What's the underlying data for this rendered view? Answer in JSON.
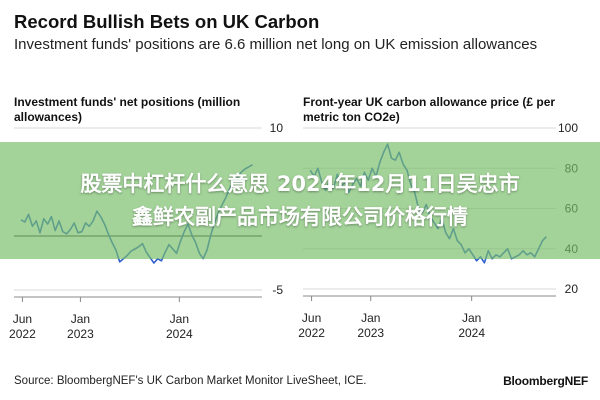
{
  "header": {
    "title": "Record Bullish Bets on UK Carbon",
    "subtitle": "Investment funds' positions are 6.6 million net long on UK emission allowances"
  },
  "banner": {
    "line1": "股票中杠杆什么意思 2024年12月11日吴忠市",
    "line2": "鑫鲜农副产品市场有限公司价格行情"
  },
  "footer": {
    "source": "Source: BloombergNEF's UK Carbon Market Monitor LiveSheet, ICE.",
    "brand": "BloombergNEF"
  },
  "colors": {
    "line": "#2f5fd0",
    "zero_line": "#555555",
    "grid": "#d9d9d9",
    "banner": "#78be69"
  },
  "chart_data": [
    {
      "type": "line",
      "title": "Investment funds' net positions (million allowances)",
      "xlabel": "",
      "ylabel": "",
      "ylim": [
        -5,
        10
      ],
      "y_ticks": [
        10,
        -5
      ],
      "x_ticks": [
        {
          "date": "2022-06-01",
          "line1": "Jun",
          "line2": "2022"
        },
        {
          "date": "2023-01-01",
          "line1": "Jan",
          "line2": "2023"
        },
        {
          "date": "2024-01-01",
          "line1": "Jan",
          "line2": "2024"
        }
      ],
      "zero_line": true,
      "grid": true,
      "series": [
        {
          "x": [
            "2022-05-27",
            "2022-06-10",
            "2022-06-24",
            "2022-07-08",
            "2022-07-22",
            "2022-08-05",
            "2022-08-19",
            "2022-09-02",
            "2022-09-16",
            "2022-09-30",
            "2022-10-14",
            "2022-10-28",
            "2022-11-11",
            "2022-11-25",
            "2022-12-09",
            "2022-12-23",
            "2023-01-06",
            "2023-01-20",
            "2023-02-03",
            "2023-02-17",
            "2023-03-03",
            "2023-03-17",
            "2023-03-31",
            "2023-04-14",
            "2023-04-28",
            "2023-05-12",
            "2023-05-26",
            "2023-06-09",
            "2023-06-23",
            "2023-07-07",
            "2023-07-21",
            "2023-08-04",
            "2023-08-18",
            "2023-09-01",
            "2023-09-15",
            "2023-09-29",
            "2023-10-13",
            "2023-10-27",
            "2023-11-10",
            "2023-11-24",
            "2023-12-08",
            "2023-12-22",
            "2024-01-05",
            "2024-01-19",
            "2024-02-02",
            "2024-02-16",
            "2024-03-01",
            "2024-03-15",
            "2024-03-29",
            "2024-04-12",
            "2024-04-26",
            "2024-05-10",
            "2024-05-24",
            "2024-06-07",
            "2024-06-21",
            "2024-07-05",
            "2024-07-19",
            "2024-08-02",
            "2024-08-16",
            "2024-08-30",
            "2024-09-13",
            "2024-09-27"
          ],
          "values": [
            1.5,
            1.3,
            2.0,
            0.9,
            1.4,
            0.3,
            1.6,
            1.1,
            1.8,
            0.5,
            1.4,
            0.4,
            0.2,
            0.6,
            1.2,
            0.3,
            0.4,
            1.2,
            0.9,
            1.4,
            2.3,
            1.8,
            1.1,
            0.2,
            -0.6,
            -1.3,
            -2.4,
            -2.1,
            -1.8,
            -1.4,
            -1.2,
            -1.0,
            -0.7,
            -1.5,
            -2.0,
            -2.5,
            -2.1,
            -2.3,
            -1.5,
            -0.8,
            -1.2,
            -1.6,
            -0.5,
            0.4,
            1.1,
            0.1,
            -0.6,
            -1.6,
            -2.1,
            -1.3,
            0.1,
            1.2,
            2.2,
            2.9,
            3.6,
            4.4,
            5.1,
            5.4,
            5.9,
            6.2,
            6.4,
            6.6
          ]
        }
      ]
    },
    {
      "type": "line",
      "title": "Front-year UK carbon allowance price (£ per metric ton CO2e)",
      "xlabel": "",
      "ylabel": "",
      "ylim": [
        20,
        100
      ],
      "y_ticks": [
        100,
        80,
        60,
        40,
        20
      ],
      "x_ticks": [
        {
          "date": "2022-06-01",
          "line1": "Jun",
          "line2": "2022"
        },
        {
          "date": "2023-01-01",
          "line1": "Jan",
          "line2": "2023"
        },
        {
          "date": "2024-01-01",
          "line1": "Jan",
          "line2": "2024"
        }
      ],
      "grid": true,
      "series": [
        {
          "x": [
            "2022-05-27",
            "2022-06-10",
            "2022-06-24",
            "2022-07-08",
            "2022-07-22",
            "2022-08-05",
            "2022-08-19",
            "2022-09-02",
            "2022-09-16",
            "2022-09-30",
            "2022-10-14",
            "2022-10-28",
            "2022-11-11",
            "2022-11-25",
            "2022-12-09",
            "2022-12-23",
            "2023-01-06",
            "2023-01-20",
            "2023-02-03",
            "2023-02-17",
            "2023-03-03",
            "2023-03-17",
            "2023-03-31",
            "2023-04-14",
            "2023-04-28",
            "2023-05-12",
            "2023-05-26",
            "2023-06-09",
            "2023-06-23",
            "2023-07-07",
            "2023-07-21",
            "2023-08-04",
            "2023-08-18",
            "2023-09-01",
            "2023-09-15",
            "2023-09-29",
            "2023-10-13",
            "2023-10-27",
            "2023-11-10",
            "2023-11-24",
            "2023-12-08",
            "2023-12-22",
            "2024-01-05",
            "2024-01-19",
            "2024-02-02",
            "2024-02-16",
            "2024-03-01",
            "2024-03-15",
            "2024-03-29",
            "2024-04-12",
            "2024-04-26",
            "2024-05-10",
            "2024-05-24",
            "2024-06-07",
            "2024-06-21",
            "2024-07-05",
            "2024-07-19",
            "2024-08-02",
            "2024-08-16",
            "2024-08-30",
            "2024-09-13",
            "2024-09-27"
          ],
          "values": [
            79,
            76,
            80,
            73,
            69,
            74,
            70,
            77,
            71,
            73,
            68,
            72,
            75,
            71,
            78,
            74,
            80,
            76,
            83,
            88,
            92,
            85,
            84,
            88,
            82,
            79,
            72,
            68,
            60,
            58,
            62,
            56,
            53,
            50,
            55,
            48,
            45,
            50,
            44,
            42,
            38,
            40,
            37,
            34,
            36,
            33,
            39,
            35,
            37,
            36,
            38,
            40,
            35,
            36,
            37,
            39,
            37,
            38,
            36,
            40,
            44,
            46
          ]
        }
      ]
    }
  ]
}
